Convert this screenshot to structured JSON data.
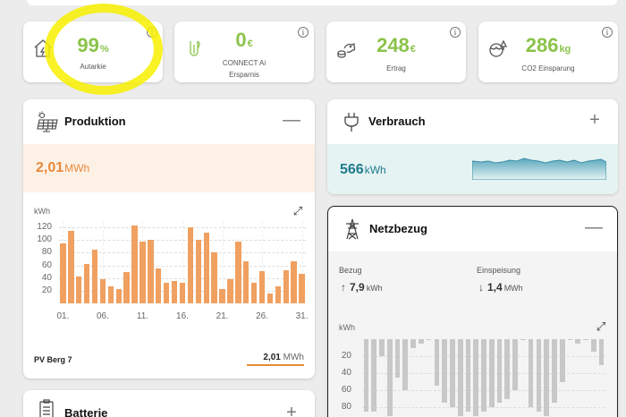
{
  "stats": [
    {
      "value": "99",
      "unit": "%",
      "label_line1": "Autarkie",
      "label_line2": "",
      "icon": "house-icon",
      "info": "i"
    },
    {
      "value": "0",
      "unit": "€",
      "label_line1": "CONNECT Ai",
      "label_line2": "Ersparnis",
      "icon": "plug-leaf-icon",
      "info": "i"
    },
    {
      "value": "248",
      "unit": "€",
      "label_line1": "Ertrag",
      "label_line2": "",
      "icon": "piggy-bank-icon",
      "info": "i"
    },
    {
      "value": "286",
      "unit": "kg",
      "label_line1": "CO2 Einsparung",
      "label_line2": "",
      "icon": "globe-tree-icon",
      "info": "i"
    }
  ],
  "produktion": {
    "title": "Produktion",
    "toggle": "—",
    "value": "2,01",
    "unit": "MWh",
    "plant_name": "PV Berg 7",
    "plant_value": "2,01",
    "plant_unit": "MWh"
  },
  "verbrauch": {
    "title": "Verbrauch",
    "toggle": "+",
    "value": "566",
    "unit": "kWh"
  },
  "netzbezug": {
    "title": "Netzbezug",
    "toggle": "—",
    "bezug_label": "Bezug",
    "bezug_arrow": "↑",
    "bezug_value": "7,9",
    "bezug_unit": "kWh",
    "einspeisung_label": "Einspeisung",
    "einspeisung_arrow": "↓",
    "einspeisung_value": "1,4",
    "einspeisung_unit": "MWh"
  },
  "batterie": {
    "title": "Batterie",
    "toggle": "+"
  },
  "expand_glyph": "⤢",
  "colors": {
    "green": "#8bc34a",
    "orange": "#e8893a",
    "teal": "#1f7a8c",
    "production_bg": "#fdf1e6",
    "consumption_bg": "#e5f3f3"
  },
  "chart_data": [
    {
      "type": "bar",
      "ylabel": "kWh",
      "ylim": [
        0,
        130
      ],
      "yticks": [
        20,
        40,
        60,
        80,
        100,
        120
      ],
      "xticks": [
        "01.",
        "06.",
        "11.",
        "16.",
        "21.",
        "26.",
        "31."
      ],
      "categories": [
        1,
        2,
        3,
        4,
        5,
        6,
        7,
        8,
        9,
        10,
        11,
        12,
        13,
        14,
        15,
        16,
        17,
        18,
        19,
        20,
        21,
        22,
        23,
        24,
        25,
        26,
        27,
        28,
        29,
        30,
        31
      ],
      "values": [
        95,
        115,
        42,
        62,
        85,
        38,
        27,
        22,
        50,
        123,
        98,
        100,
        55,
        33,
        35,
        33,
        120,
        100,
        112,
        80,
        23,
        38,
        97,
        67,
        33,
        51,
        15,
        27,
        52,
        67,
        46
      ]
    },
    {
      "type": "bar",
      "ylabel": "kWh",
      "yticks": [
        20,
        40,
        60,
        80
      ],
      "ylim_inverted": [
        0,
        90
      ],
      "values": [
        85,
        85,
        20,
        90,
        45,
        60,
        10,
        5,
        0,
        55,
        75,
        80,
        90,
        85,
        90,
        85,
        80,
        75,
        70,
        60,
        0,
        80,
        85,
        90,
        75,
        50,
        0,
        5,
        0,
        15,
        30
      ]
    }
  ]
}
